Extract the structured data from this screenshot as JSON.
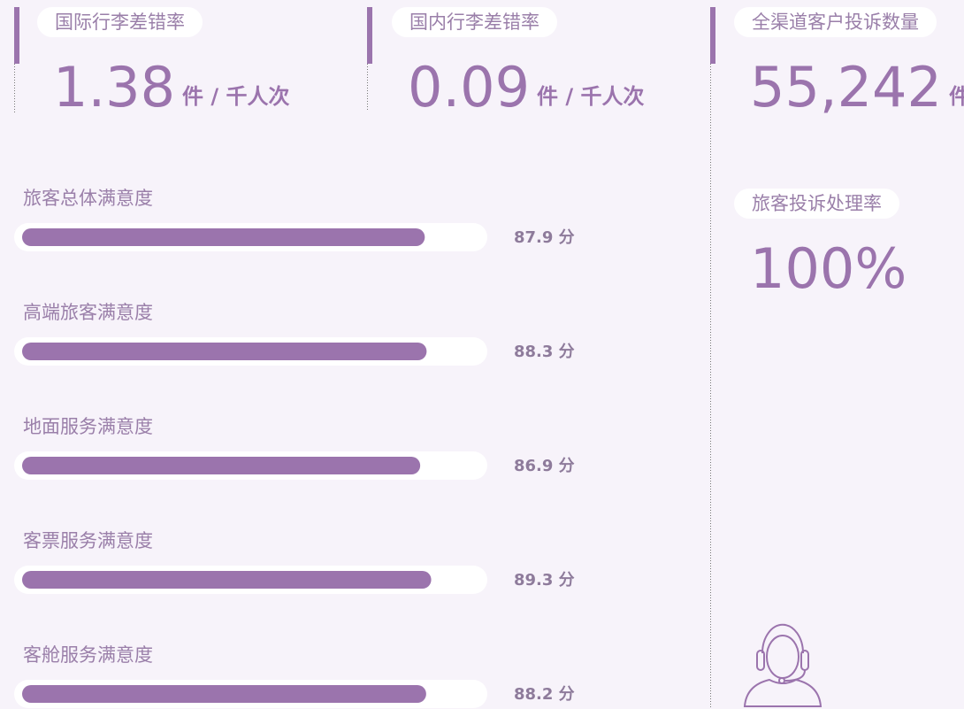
{
  "kpis": [
    {
      "label": "国际行李差错率",
      "value": "1.38",
      "unit": "件 / 千人次"
    },
    {
      "label": "国内行李差错率",
      "value": "0.09",
      "unit": "件 / 千人次"
    },
    {
      "label": "全渠道客户投诉数量",
      "value": "55,242",
      "unit": "件"
    },
    {
      "label": "旅客投诉处理率",
      "value": "100%"
    }
  ],
  "chart_data": {
    "type": "bar",
    "orientation": "horizontal",
    "categories": [
      "旅客总体满意度",
      "高端旅客满意度",
      "地面服务满意度",
      "客票服务满意度",
      "客舱服务满意度"
    ],
    "values": [
      87.9,
      88.3,
      86.9,
      89.3,
      88.2
    ],
    "value_labels": [
      "87.9 分",
      "88.3 分",
      "86.9 分",
      "89.3 分",
      "88.2 分"
    ],
    "xlim": [
      0,
      100
    ],
    "color": "#9b74ad"
  }
}
